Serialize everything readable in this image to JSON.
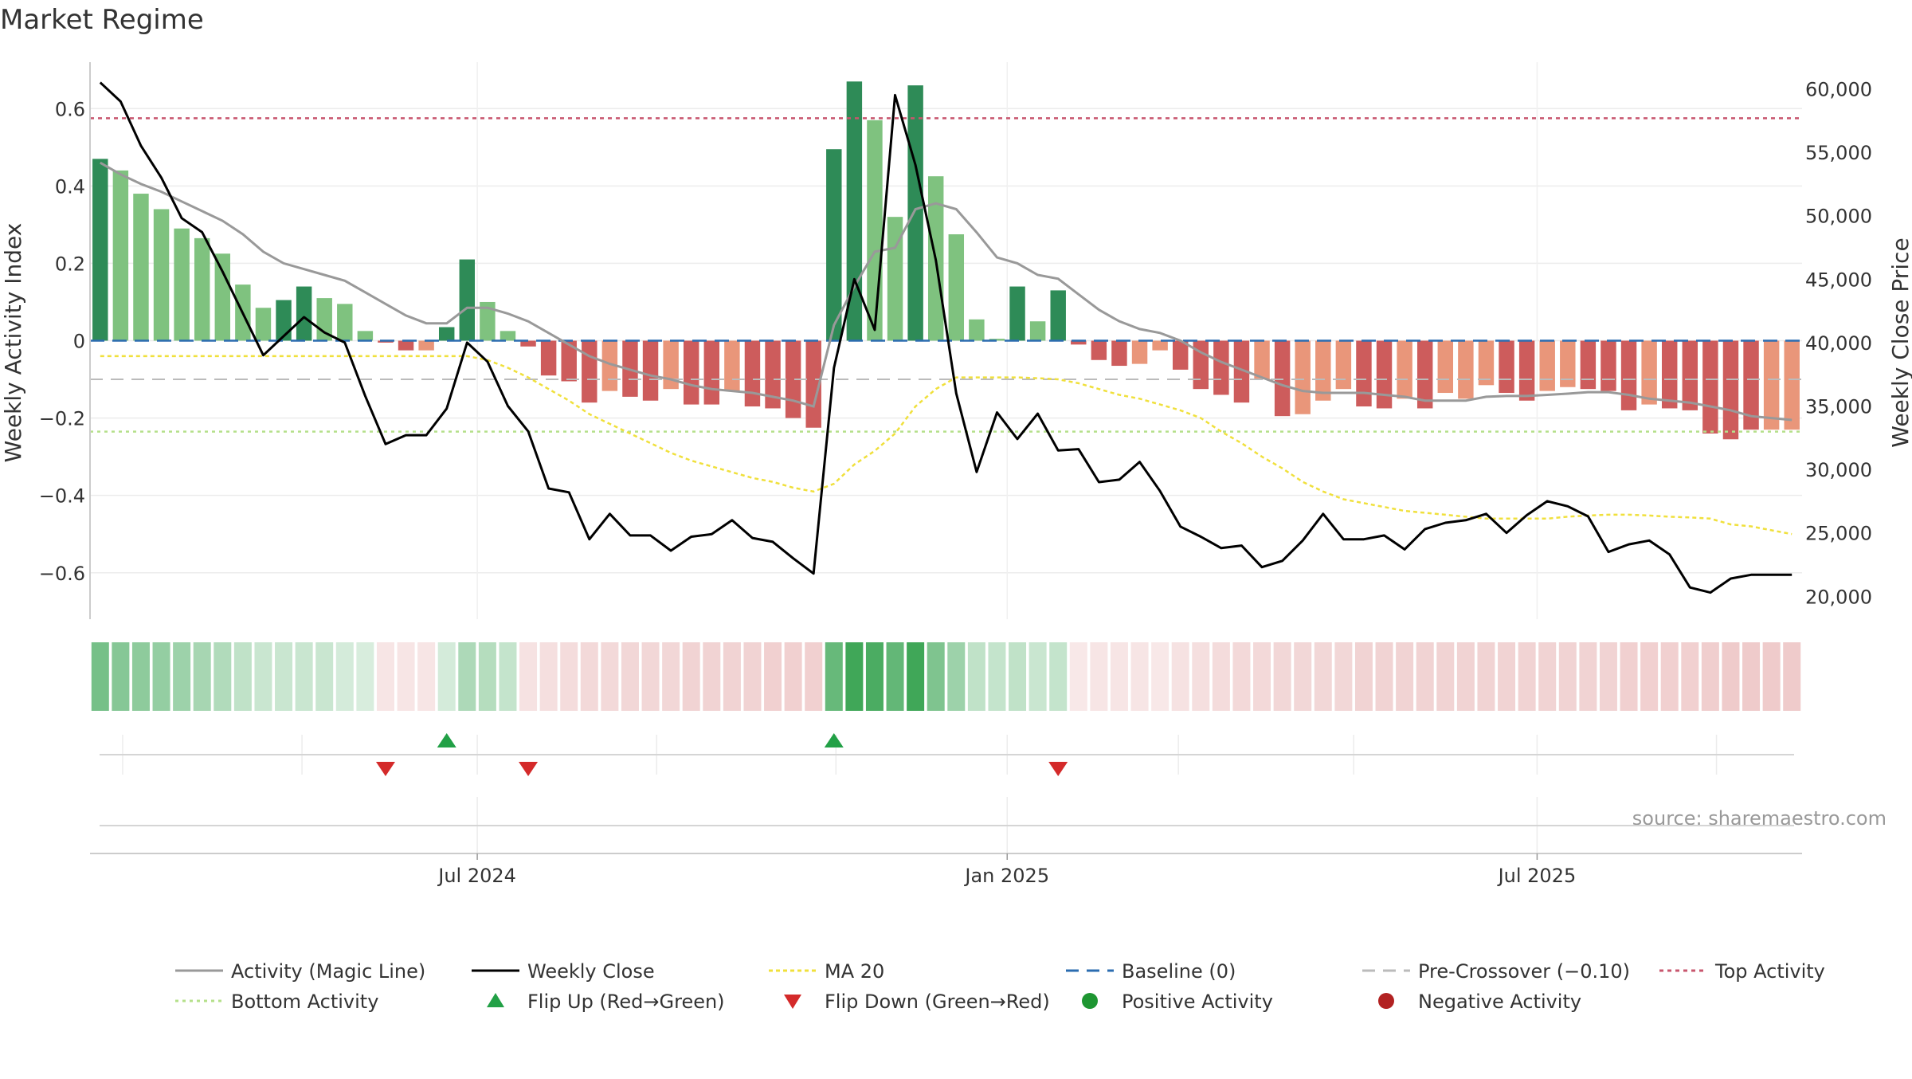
{
  "chart_data": {
    "type": "bar",
    "title": "Market Regime",
    "ylabel_left": "Weekly Activity Index",
    "ylabel_right": "Weekly Close Price",
    "source": "source: sharemaestro.com",
    "yticks_left": [
      {
        "v": 0.6,
        "label": "0.6"
      },
      {
        "v": 0.4,
        "label": "0.4"
      },
      {
        "v": 0.2,
        "label": "0.2"
      },
      {
        "v": 0,
        "label": "0"
      },
      {
        "v": -0.2,
        "label": "−0.2"
      },
      {
        "v": -0.4,
        "label": "−0.4"
      },
      {
        "v": -0.6,
        "label": "−0.6"
      }
    ],
    "yticks_right": [
      {
        "v": 60000,
        "label": "60,000"
      },
      {
        "v": 55000,
        "label": "55,000"
      },
      {
        "v": 50000,
        "label": "50,000"
      },
      {
        "v": 45000,
        "label": "45,000"
      },
      {
        "v": 40000,
        "label": "40,000"
      },
      {
        "v": 35000,
        "label": "35,000"
      },
      {
        "v": 30000,
        "label": "30,000"
      },
      {
        "v": 25000,
        "label": "25,000"
      },
      {
        "v": 20000,
        "label": "20,000"
      }
    ],
    "ylim_left": [
      -0.72,
      0.72
    ],
    "ylim_right": [
      18200,
      62100
    ],
    "week_count": 84,
    "xticks": [
      {
        "index": 19,
        "label": "Jul 2024"
      },
      {
        "index": 45,
        "label": "Jan 2025"
      },
      {
        "index": 71,
        "label": "Jul 2025"
      }
    ],
    "minor_gridline_indices": [
      1.6,
      10.4,
      19.0,
      27.8,
      36.6,
      45.0,
      53.4,
      62.0,
      71.0,
      79.8
    ],
    "reference_lines": {
      "top_activity": 0.575,
      "baseline": 0,
      "pre_crossover": -0.1,
      "bottom_activity": -0.235
    },
    "activity": [
      0.47,
      0.44,
      0.38,
      0.34,
      0.29,
      0.265,
      0.225,
      0.145,
      0.085,
      0.105,
      0.14,
      0.11,
      0.095,
      0.025,
      -0.005,
      -0.025,
      -0.025,
      0.035,
      0.21,
      0.1,
      0.025,
      -0.015,
      -0.09,
      -0.105,
      -0.16,
      -0.13,
      -0.145,
      -0.155,
      -0.125,
      -0.165,
      -0.165,
      -0.13,
      -0.17,
      -0.175,
      -0.2,
      -0.225,
      0.495,
      0.67,
      0.57,
      0.32,
      0.66,
      0.425,
      0.275,
      0.055,
      0.005,
      0.14,
      0.05,
      0.13,
      -0.01,
      -0.05,
      -0.065,
      -0.06,
      -0.025,
      -0.075,
      -0.125,
      -0.14,
      -0.16,
      -0.1,
      -0.195,
      -0.19,
      -0.155,
      -0.125,
      -0.17,
      -0.175,
      -0.15,
      -0.175,
      -0.135,
      -0.15,
      -0.115,
      -0.135,
      -0.155,
      -0.13,
      -0.12,
      -0.125,
      -0.13,
      -0.18,
      -0.165,
      -0.175,
      -0.18,
      -0.24,
      -0.255,
      -0.23,
      -0.23,
      -0.23
    ],
    "bar_shade": [
      "d",
      "l",
      "l",
      "l",
      "l",
      "l",
      "l",
      "l",
      "l",
      "d",
      "d",
      "l",
      "l",
      "l",
      "d",
      "d",
      "l",
      "d",
      "d",
      "l",
      "l",
      "d",
      "d",
      "d",
      "d",
      "l",
      "d",
      "d",
      "l",
      "d",
      "d",
      "l",
      "d",
      "d",
      "d",
      "d",
      "d",
      "d",
      "l",
      "l",
      "d",
      "l",
      "l",
      "l",
      "l",
      "d",
      "l",
      "d",
      "d",
      "d",
      "d",
      "l",
      "l",
      "d",
      "d",
      "d",
      "d",
      "l",
      "d",
      "l",
      "l",
      "l",
      "d",
      "d",
      "l",
      "d",
      "l",
      "l",
      "l",
      "d",
      "d",
      "l",
      "l",
      "d",
      "d",
      "d",
      "l",
      "d",
      "d",
      "d",
      "d",
      "d",
      "l",
      "l"
    ],
    "magic_line": [
      0.46,
      0.43,
      0.405,
      0.385,
      0.36,
      0.335,
      0.31,
      0.275,
      0.23,
      0.2,
      0.185,
      0.17,
      0.155,
      0.125,
      0.095,
      0.065,
      0.045,
      0.045,
      0.085,
      0.085,
      0.07,
      0.05,
      0.02,
      -0.01,
      -0.04,
      -0.06,
      -0.075,
      -0.09,
      -0.1,
      -0.115,
      -0.125,
      -0.13,
      -0.135,
      -0.145,
      -0.155,
      -0.17,
      0.04,
      0.14,
      0.23,
      0.24,
      0.34,
      0.355,
      0.34,
      0.28,
      0.215,
      0.2,
      0.17,
      0.16,
      0.12,
      0.08,
      0.05,
      0.03,
      0.02,
      0.0,
      -0.03,
      -0.055,
      -0.075,
      -0.095,
      -0.115,
      -0.13,
      -0.135,
      -0.135,
      -0.135,
      -0.14,
      -0.145,
      -0.155,
      -0.155,
      -0.155,
      -0.145,
      -0.143,
      -0.143,
      -0.14,
      -0.137,
      -0.133,
      -0.133,
      -0.14,
      -0.15,
      -0.155,
      -0.16,
      -0.17,
      -0.18,
      -0.195,
      -0.2,
      -0.205
    ],
    "ma20": [
      -0.04,
      -0.04,
      -0.04,
      -0.04,
      -0.04,
      -0.04,
      -0.04,
      -0.04,
      -0.04,
      -0.04,
      -0.04,
      -0.04,
      -0.04,
      -0.04,
      -0.04,
      -0.04,
      -0.04,
      -0.04,
      -0.04,
      -0.05,
      -0.07,
      -0.095,
      -0.125,
      -0.155,
      -0.19,
      -0.215,
      -0.24,
      -0.265,
      -0.29,
      -0.31,
      -0.325,
      -0.34,
      -0.355,
      -0.365,
      -0.38,
      -0.39,
      -0.37,
      -0.32,
      -0.285,
      -0.24,
      -0.17,
      -0.125,
      -0.095,
      -0.095,
      -0.095,
      -0.095,
      -0.097,
      -0.1,
      -0.11,
      -0.125,
      -0.14,
      -0.15,
      -0.165,
      -0.18,
      -0.2,
      -0.235,
      -0.265,
      -0.3,
      -0.33,
      -0.365,
      -0.39,
      -0.41,
      -0.42,
      -0.43,
      -0.44,
      -0.445,
      -0.45,
      -0.455,
      -0.46,
      -0.46,
      -0.46,
      -0.46,
      -0.455,
      -0.452,
      -0.45,
      -0.45,
      -0.452,
      -0.455,
      -0.457,
      -0.46,
      -0.475,
      -0.48,
      -0.49,
      -0.5
    ],
    "weekly_close": [
      60500,
      59000,
      55500,
      53000,
      49800,
      48700,
      45600,
      42300,
      39000,
      40500,
      42000,
      40800,
      40000,
      35800,
      32000,
      32700,
      32700,
      34800,
      40000,
      38500,
      35000,
      33000,
      28500,
      28200,
      24500,
      26500,
      24800,
      24800,
      23600,
      24700,
      24900,
      26000,
      24600,
      24300,
      23000,
      21800,
      38000,
      45000,
      41000,
      59500,
      54000,
      46500,
      36000,
      29800,
      34500,
      32400,
      34400,
      31500,
      31600,
      29000,
      29200,
      30600,
      28300,
      25500,
      24700,
      23800,
      24000,
      22300,
      22800,
      24400,
      26500,
      24500,
      24500,
      24800,
      23700,
      25300,
      25800,
      26000,
      26500,
      25000,
      26400,
      27500,
      27100,
      26300,
      23500,
      24100,
      24400,
      23300,
      20700,
      20300,
      21400,
      21700,
      21700,
      21700
    ],
    "heat_strip": [
      {
        "tone": "pos",
        "level": 0.7
      },
      {
        "tone": "pos",
        "level": 0.62
      },
      {
        "tone": "pos",
        "level": 0.58
      },
      {
        "tone": "pos",
        "level": 0.55
      },
      {
        "tone": "pos",
        "level": 0.5
      },
      {
        "tone": "pos",
        "level": 0.45
      },
      {
        "tone": "pos",
        "level": 0.4
      },
      {
        "tone": "pos",
        "level": 0.32
      },
      {
        "tone": "pos",
        "level": 0.28
      },
      {
        "tone": "pos",
        "level": 0.28
      },
      {
        "tone": "pos",
        "level": 0.28
      },
      {
        "tone": "pos",
        "level": 0.28
      },
      {
        "tone": "pos",
        "level": 0.22
      },
      {
        "tone": "pos",
        "level": 0.2
      },
      {
        "tone": "neg",
        "level": 0.18
      },
      {
        "tone": "neg",
        "level": 0.18
      },
      {
        "tone": "neg",
        "level": 0.18
      },
      {
        "tone": "pos",
        "level": 0.22
      },
      {
        "tone": "pos",
        "level": 0.42
      },
      {
        "tone": "pos",
        "level": 0.38
      },
      {
        "tone": "pos",
        "level": 0.3
      },
      {
        "tone": "neg",
        "level": 0.2
      },
      {
        "tone": "neg",
        "level": 0.22
      },
      {
        "tone": "neg",
        "level": 0.24
      },
      {
        "tone": "neg",
        "level": 0.26
      },
      {
        "tone": "neg",
        "level": 0.26
      },
      {
        "tone": "neg",
        "level": 0.28
      },
      {
        "tone": "neg",
        "level": 0.28
      },
      {
        "tone": "neg",
        "level": 0.28
      },
      {
        "tone": "neg",
        "level": 0.3
      },
      {
        "tone": "neg",
        "level": 0.3
      },
      {
        "tone": "neg",
        "level": 0.3
      },
      {
        "tone": "neg",
        "level": 0.3
      },
      {
        "tone": "neg",
        "level": 0.32
      },
      {
        "tone": "neg",
        "level": 0.32
      },
      {
        "tone": "neg",
        "level": 0.32
      },
      {
        "tone": "pos",
        "level": 0.78
      },
      {
        "tone": "pos",
        "level": 0.98
      },
      {
        "tone": "pos",
        "level": 0.92
      },
      {
        "tone": "pos",
        "level": 0.8
      },
      {
        "tone": "pos",
        "level": 0.98
      },
      {
        "tone": "pos",
        "level": 0.66
      },
      {
        "tone": "pos",
        "level": 0.5
      },
      {
        "tone": "pos",
        "level": 0.32
      },
      {
        "tone": "pos",
        "level": 0.3
      },
      {
        "tone": "pos",
        "level": 0.32
      },
      {
        "tone": "pos",
        "level": 0.28
      },
      {
        "tone": "pos",
        "level": 0.3
      },
      {
        "tone": "neg",
        "level": 0.16
      },
      {
        "tone": "neg",
        "level": 0.18
      },
      {
        "tone": "neg",
        "level": 0.18
      },
      {
        "tone": "neg",
        "level": 0.18
      },
      {
        "tone": "neg",
        "level": 0.16
      },
      {
        "tone": "neg",
        "level": 0.2
      },
      {
        "tone": "neg",
        "level": 0.22
      },
      {
        "tone": "neg",
        "level": 0.24
      },
      {
        "tone": "neg",
        "level": 0.26
      },
      {
        "tone": "neg",
        "level": 0.26
      },
      {
        "tone": "neg",
        "level": 0.28
      },
      {
        "tone": "neg",
        "level": 0.28
      },
      {
        "tone": "neg",
        "level": 0.28
      },
      {
        "tone": "neg",
        "level": 0.28
      },
      {
        "tone": "neg",
        "level": 0.3
      },
      {
        "tone": "neg",
        "level": 0.3
      },
      {
        "tone": "neg",
        "level": 0.3
      },
      {
        "tone": "neg",
        "level": 0.3
      },
      {
        "tone": "neg",
        "level": 0.3
      },
      {
        "tone": "neg",
        "level": 0.3
      },
      {
        "tone": "neg",
        "level": 0.3
      },
      {
        "tone": "neg",
        "level": 0.3
      },
      {
        "tone": "neg",
        "level": 0.3
      },
      {
        "tone": "neg",
        "level": 0.3
      },
      {
        "tone": "neg",
        "level": 0.3
      },
      {
        "tone": "neg",
        "level": 0.3
      },
      {
        "tone": "neg",
        "level": 0.3
      },
      {
        "tone": "neg",
        "level": 0.32
      },
      {
        "tone": "neg",
        "level": 0.32
      },
      {
        "tone": "neg",
        "level": 0.32
      },
      {
        "tone": "neg",
        "level": 0.32
      },
      {
        "tone": "neg",
        "level": 0.34
      },
      {
        "tone": "neg",
        "level": 0.36
      },
      {
        "tone": "neg",
        "level": 0.36
      },
      {
        "tone": "neg",
        "level": 0.36
      },
      {
        "tone": "neg",
        "level": 0.36
      }
    ],
    "flip_up_indices": [
      17,
      36
    ],
    "flip_down_indices": [
      14,
      21,
      47
    ],
    "legend": [
      {
        "key": "magic",
        "label": "Activity (Magic Line)"
      },
      {
        "key": "close",
        "label": "Weekly Close"
      },
      {
        "key": "ma20",
        "label": "MA 20"
      },
      {
        "key": "baseline",
        "label": "Baseline (0)"
      },
      {
        "key": "precross",
        "label": "Pre-Crossover (−0.10)"
      },
      {
        "key": "top",
        "label": "Top Activity"
      },
      {
        "key": "bottom",
        "label": "Bottom Activity"
      },
      {
        "key": "flipup",
        "label": "Flip Up (Red→Green)"
      },
      {
        "key": "flipdown",
        "label": "Flip Down (Green→Red)"
      },
      {
        "key": "posact",
        "label": "Positive Activity"
      },
      {
        "key": "negact",
        "label": "Negative Activity"
      }
    ],
    "colors": {
      "pos_dark": "#2e8b57",
      "pos_light": "#7fc27f",
      "neg_dark": "#cd5c5c",
      "neg_light": "#e9967a",
      "magic_line": "#999999",
      "close_line": "#000000",
      "ma20": "#f0e03c",
      "baseline": "#2b6cb0",
      "pre_crossover": "#bbbbbb",
      "top_activity": "#c8566e",
      "bottom_activity": "#b5e08b",
      "flip_up": "#22a046",
      "flip_down": "#d42a2a",
      "positive_dot": "#1e9632",
      "negative_dot": "#b22222",
      "heat_pos": "#3ca555",
      "heat_neg": "#d26e6e"
    }
  }
}
